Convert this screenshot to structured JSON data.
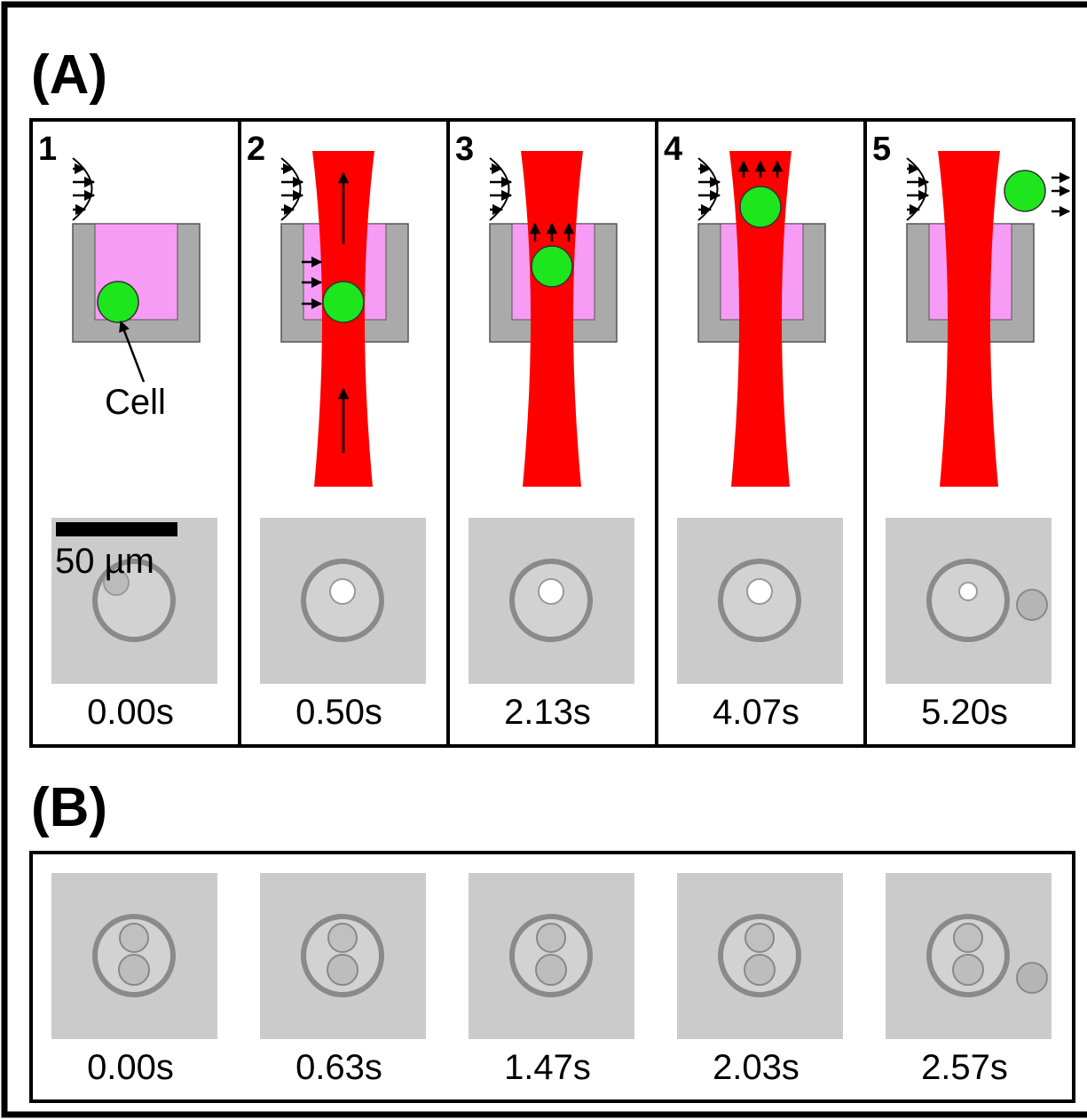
{
  "panel_a": {
    "label": "(A)",
    "cell_label": "Cell",
    "scale_bar": "50 µm",
    "steps": [
      {
        "number": "1",
        "time": "0.00s"
      },
      {
        "number": "2",
        "time": "0.50s"
      },
      {
        "number": "3",
        "time": "2.13s"
      },
      {
        "number": "4",
        "time": "4.07s"
      },
      {
        "number": "5",
        "time": "5.20s"
      }
    ]
  },
  "panel_b": {
    "label": "(B)",
    "times": [
      "0.00s",
      "0.63s",
      "1.47s",
      "2.03s",
      "2.57s"
    ]
  }
}
